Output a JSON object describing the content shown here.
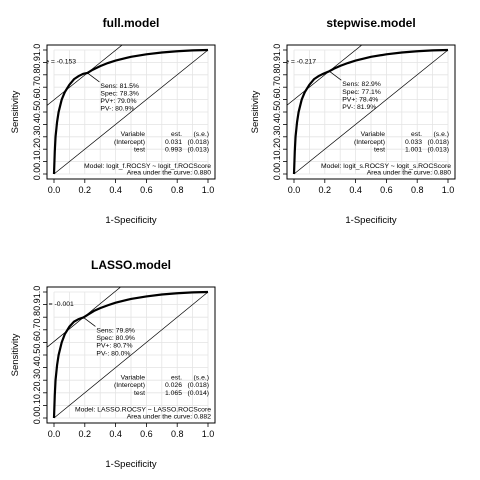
{
  "chart_data": [
    {
      "type": "line",
      "title": "full.model",
      "xlabel": "1-Specificity",
      "ylabel": "Sensitivity",
      "xlim": [
        0,
        1
      ],
      "ylim": [
        0,
        1
      ],
      "x_ticks": [
        "0.0",
        "0.2",
        "0.4",
        "0.6",
        "0.8",
        "1.0"
      ],
      "y_ticks": [
        "0.0",
        "0.1",
        "0.2",
        "0.3",
        "0.4",
        "0.5",
        "0.6",
        "0.7",
        "0.8",
        "0.9",
        "1.0"
      ],
      "grid": true,
      "series": [
        {
          "x": [
            0,
            0.005,
            0.01,
            0.02,
            0.03,
            0.05,
            0.07,
            0.1,
            0.13,
            0.16,
            0.19,
            0.217,
            0.25,
            0.3,
            0.35,
            0.4,
            0.5,
            0.6,
            0.7,
            0.8,
            0.9,
            1.0
          ],
          "y": [
            0,
            0.18,
            0.3,
            0.42,
            0.5,
            0.6,
            0.66,
            0.72,
            0.765,
            0.79,
            0.808,
            0.815,
            0.84,
            0.87,
            0.895,
            0.915,
            0.945,
            0.965,
            0.98,
            0.99,
            0.997,
            1.0
          ]
        }
      ],
      "cutoff": {
        "x": 0.217,
        "y": 0.815
      },
      "cutoff_label": "re = -0.153",
      "stats": [
        "Sens: 81.5%",
        "Spec: 78.3%",
        "PV+: 79.0%",
        "PV-: 80.9%"
      ],
      "table": {
        "header": [
          "Variable",
          "est.",
          "(s.e.)"
        ],
        "rows": [
          [
            "(Intercept)",
            "0.031",
            "(0.018)"
          ],
          [
            "test",
            "0.993",
            "(0.013)"
          ]
        ]
      },
      "model_text": "Model:  logit_f.ROCSY ~ logit_f.ROCScore",
      "auc_text": "Area under the curve: 0.880"
    },
    {
      "type": "line",
      "title": "stepwise.model",
      "xlabel": "1-Specificity",
      "ylabel": "Sensitivity",
      "xlim": [
        0,
        1
      ],
      "ylim": [
        0,
        1
      ],
      "x_ticks": [
        "0.0",
        "0.2",
        "0.4",
        "0.6",
        "0.8",
        "1.0"
      ],
      "y_ticks": [
        "0.0",
        "0.1",
        "0.2",
        "0.3",
        "0.4",
        "0.5",
        "0.6",
        "0.7",
        "0.8",
        "0.9",
        "1.0"
      ],
      "grid": true,
      "series": [
        {
          "x": [
            0,
            0.005,
            0.01,
            0.02,
            0.03,
            0.05,
            0.07,
            0.1,
            0.13,
            0.16,
            0.19,
            0.229,
            0.26,
            0.3,
            0.35,
            0.4,
            0.5,
            0.6,
            0.7,
            0.8,
            0.9,
            1.0
          ],
          "y": [
            0,
            0.18,
            0.3,
            0.42,
            0.5,
            0.6,
            0.66,
            0.72,
            0.765,
            0.79,
            0.808,
            0.829,
            0.85,
            0.872,
            0.895,
            0.915,
            0.945,
            0.965,
            0.98,
            0.99,
            0.997,
            1.0
          ]
        }
      ],
      "cutoff": {
        "x": 0.229,
        "y": 0.829
      },
      "cutoff_label": "re = -0.217",
      "stats": [
        "Sens: 82.9%",
        "Spec: 77.1%",
        "PV+: 78.4%",
        "PV-: 81.9%"
      ],
      "table": {
        "header": [
          "Variable",
          "est.",
          "(s.e.)"
        ],
        "rows": [
          [
            "(Intercept)",
            "0.033",
            "(0.018)"
          ],
          [
            "test",
            "1.001",
            "(0.013)"
          ]
        ]
      },
      "model_text": "Model:  logit_s.ROCSY ~ logit_s.ROCScore",
      "auc_text": "Area under the curve: 0.880"
    },
    {
      "type": "line",
      "title": "LASSO.model",
      "xlabel": "1-Specificity",
      "ylabel": "Sensitivity",
      "xlim": [
        0,
        1
      ],
      "ylim": [
        0,
        1
      ],
      "x_ticks": [
        "0.0",
        "0.2",
        "0.4",
        "0.6",
        "0.8",
        "1.0"
      ],
      "y_ticks": [
        "0.0",
        "0.1",
        "0.2",
        "0.3",
        "0.4",
        "0.5",
        "0.6",
        "0.7",
        "0.8",
        "0.9",
        "1.0"
      ],
      "grid": true,
      "series": [
        {
          "x": [
            0,
            0.005,
            0.01,
            0.02,
            0.03,
            0.05,
            0.07,
            0.1,
            0.13,
            0.16,
            0.191,
            0.22,
            0.26,
            0.3,
            0.35,
            0.4,
            0.5,
            0.6,
            0.7,
            0.8,
            0.9,
            1.0
          ],
          "y": [
            0,
            0.18,
            0.3,
            0.42,
            0.5,
            0.6,
            0.665,
            0.725,
            0.765,
            0.785,
            0.798,
            0.82,
            0.85,
            0.872,
            0.895,
            0.915,
            0.945,
            0.965,
            0.98,
            0.99,
            0.997,
            1.0
          ]
        }
      ],
      "cutoff": {
        "x": 0.191,
        "y": 0.798
      },
      "cutoff_label": "e = -0.001",
      "stats": [
        "Sens: 79.8%",
        "Spec: 80.9%",
        "PV+: 80.7%",
        "PV-: 80.0%"
      ],
      "table": {
        "header": [
          "Variable",
          "est.",
          "(s.e.)"
        ],
        "rows": [
          [
            "(Intercept)",
            "0.026",
            "(0.018)"
          ],
          [
            "test",
            "1.065",
            "(0.014)"
          ]
        ]
      },
      "model_text": "Model:  LASSO.ROCSY ~ LASSO.ROCScore",
      "auc_text": "Area under the curve: 0.882"
    }
  ]
}
